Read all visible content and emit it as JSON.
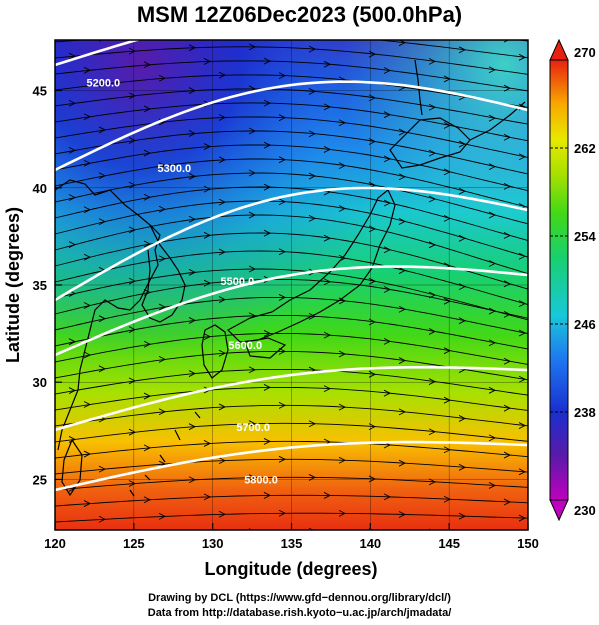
{
  "title": "MSM 12Z06Dec2023 (500.0hPa)",
  "x_axis": {
    "label": "Longitude (degrees)",
    "range": [
      120,
      150
    ],
    "ticks": [
      120,
      125,
      130,
      135,
      140,
      145,
      150
    ],
    "tick_labels": [
      "120",
      "125",
      "130",
      "135",
      "140",
      "145",
      "150"
    ]
  },
  "y_axis": {
    "label": "Latitude  (degrees)",
    "range": [
      22.4,
      47.6
    ],
    "ticks": [
      25,
      30,
      35,
      40,
      45
    ],
    "tick_labels": [
      "25",
      "30",
      "35",
      "40",
      "45"
    ]
  },
  "colorbar": {
    "range": [
      230,
      270
    ],
    "ticks": [
      230,
      238,
      246,
      254,
      262,
      270
    ],
    "tick_labels": [
      "230",
      "238",
      "246",
      "254",
      "262",
      "270"
    ],
    "colors": [
      "#c000c0",
      "#5a1aa8",
      "#1a2fd0",
      "#1e78f0",
      "#18c8d8",
      "#18d070",
      "#40d818",
      "#a8e000",
      "#e8e800",
      "#f8a800",
      "#f05010",
      "#e82010"
    ]
  },
  "contours": [
    {
      "label": "5200.0",
      "label_lon": 122.0,
      "label_lat": 45.2
    },
    {
      "label": "5300.0",
      "label_lon": 126.5,
      "label_lat": 40.8
    },
    {
      "label": "5500.0",
      "label_lon": 130.5,
      "label_lat": 35.0
    },
    {
      "label": "5600.0",
      "label_lon": 131.0,
      "label_lat": 31.7
    },
    {
      "label": "5700.0",
      "label_lon": 131.5,
      "label_lat": 27.5
    },
    {
      "label": "5800.0",
      "label_lon": 132.0,
      "label_lat": 24.8
    }
  ],
  "credits": {
    "line1": "Drawing by DCL (https://www.gfd−dennou.org/library/dcl/)",
    "line2": "Data from http://database.rish.kyoto−u.ac.jp/arch/jmadata/"
  }
}
